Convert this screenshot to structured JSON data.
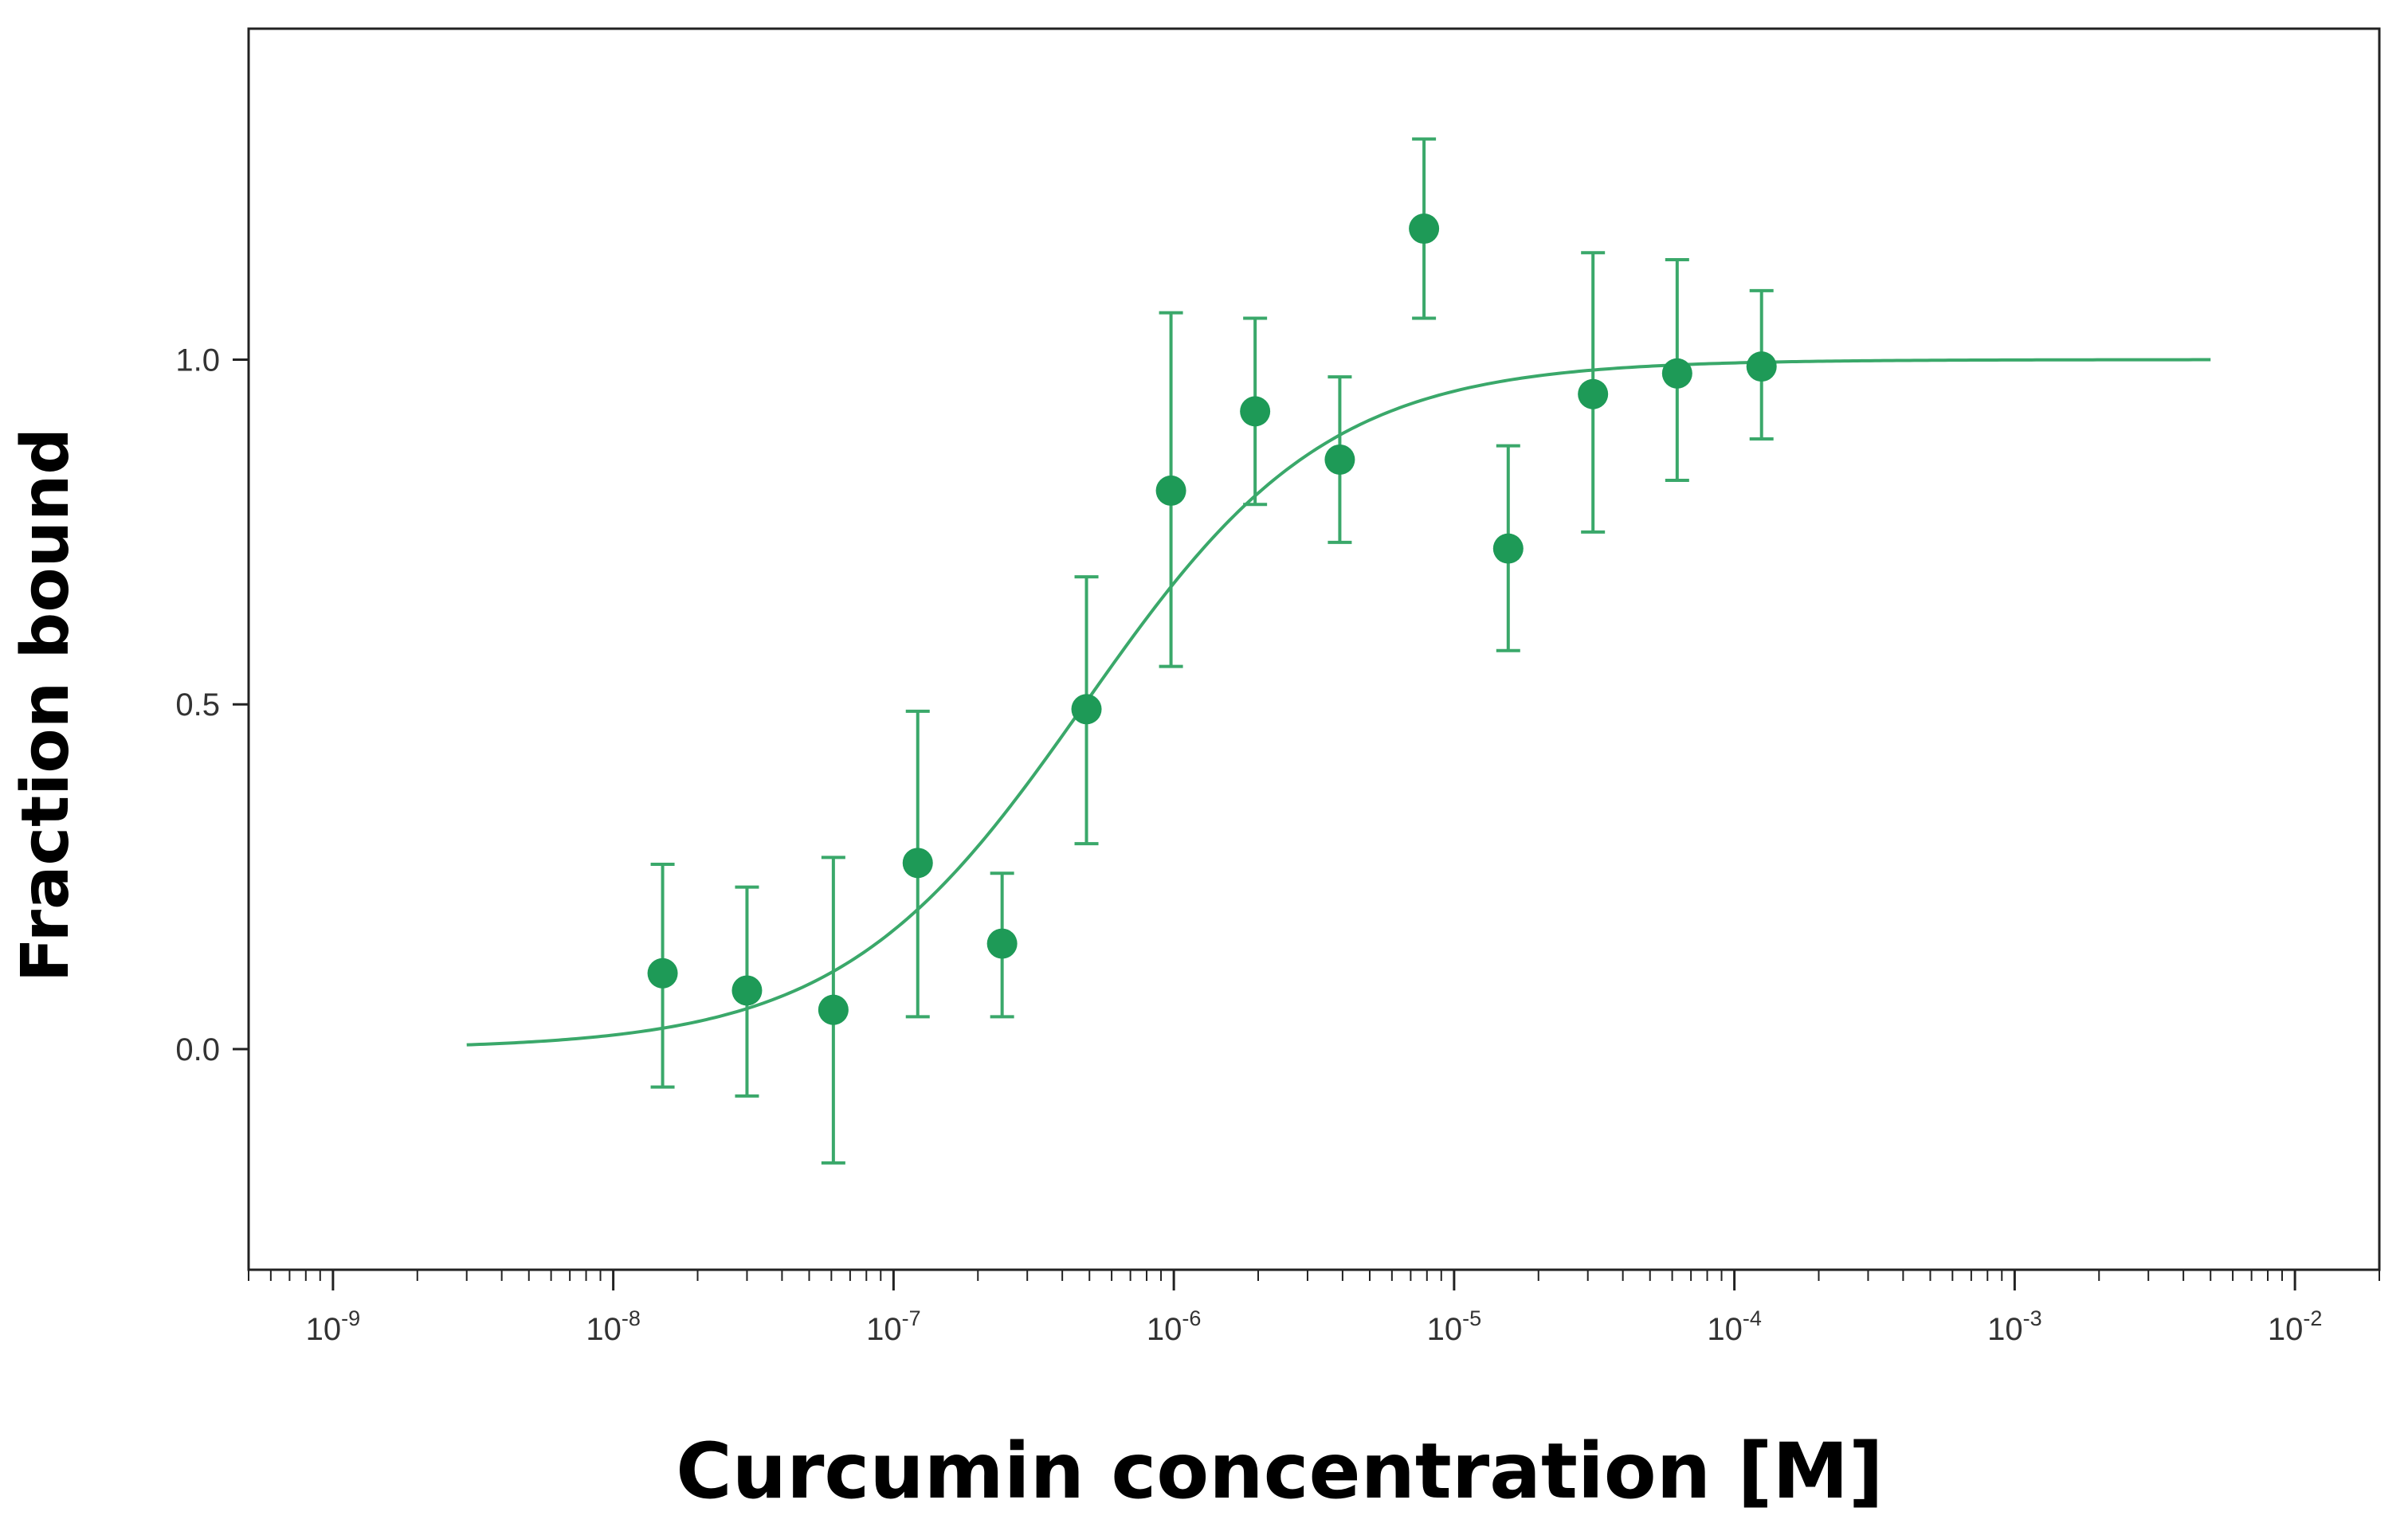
{
  "chart_data": {
    "type": "scatter",
    "title": "",
    "xlabel": "Curcumin concentration [M]",
    "ylabel": "Fraction bound",
    "x_scale": "log",
    "xlim": [
      5e-10,
      0.02
    ],
    "ylim": [
      -0.32,
      1.48
    ],
    "grid": false,
    "legend": "none",
    "x_ticks": [
      {
        "value": 1e-09,
        "base": "10",
        "exp": "-9"
      },
      {
        "value": 1e-08,
        "base": "10",
        "exp": "-8"
      },
      {
        "value": 1e-07,
        "base": "10",
        "exp": "-7"
      },
      {
        "value": 1e-06,
        "base": "10",
        "exp": "-6"
      },
      {
        "value": 1e-05,
        "base": "10",
        "exp": "-5"
      },
      {
        "value": 0.0001,
        "base": "10",
        "exp": "-4"
      },
      {
        "value": 0.001,
        "base": "10",
        "exp": "-3"
      },
      {
        "value": 0.01,
        "base": "10",
        "exp": "-2"
      }
    ],
    "y_ticks": [
      {
        "value": 0.0,
        "label": "0.0"
      },
      {
        "value": 0.5,
        "label": "0.5"
      },
      {
        "value": 1.0,
        "label": "1.0"
      }
    ],
    "series": [
      {
        "x": [
          1.5e-08,
          3e-08,
          6.1e-08,
          1.22e-07,
          2.44e-07,
          4.88e-07,
          9.77e-07,
          1.95e-06,
          3.91e-06,
          7.81e-06,
          1.56e-05,
          3.13e-05,
          6.25e-05,
          0.000125
        ],
        "y": [
          0.11,
          0.085,
          0.057,
          0.27,
          0.153,
          0.493,
          0.81,
          0.925,
          0.855,
          1.19,
          0.726,
          0.95,
          0.98,
          0.99
        ],
        "yerr_low": [
          -0.055,
          -0.068,
          -0.165,
          0.047,
          0.047,
          0.298,
          0.555,
          0.79,
          0.735,
          1.06,
          0.578,
          0.75,
          0.825,
          0.885
        ],
        "yerr_high": [
          0.268,
          0.235,
          0.278,
          0.49,
          0.255,
          0.685,
          1.068,
          1.06,
          0.975,
          1.32,
          0.875,
          1.155,
          1.145,
          1.1
        ],
        "color": "#1e9a57"
      }
    ],
    "fit": {
      "type": "sigmoid",
      "bottom": 0.0,
      "top": 1.0,
      "ec50": 4.8e-07,
      "hill": 1.0,
      "x_range": [
        3e-09,
        0.005
      ],
      "color": "#3aa86a"
    },
    "colors": {
      "marker": "#1e9a57",
      "error_bar": "#3aa86a",
      "fit_line": "#3aa86a",
      "axis": "#222222"
    }
  }
}
